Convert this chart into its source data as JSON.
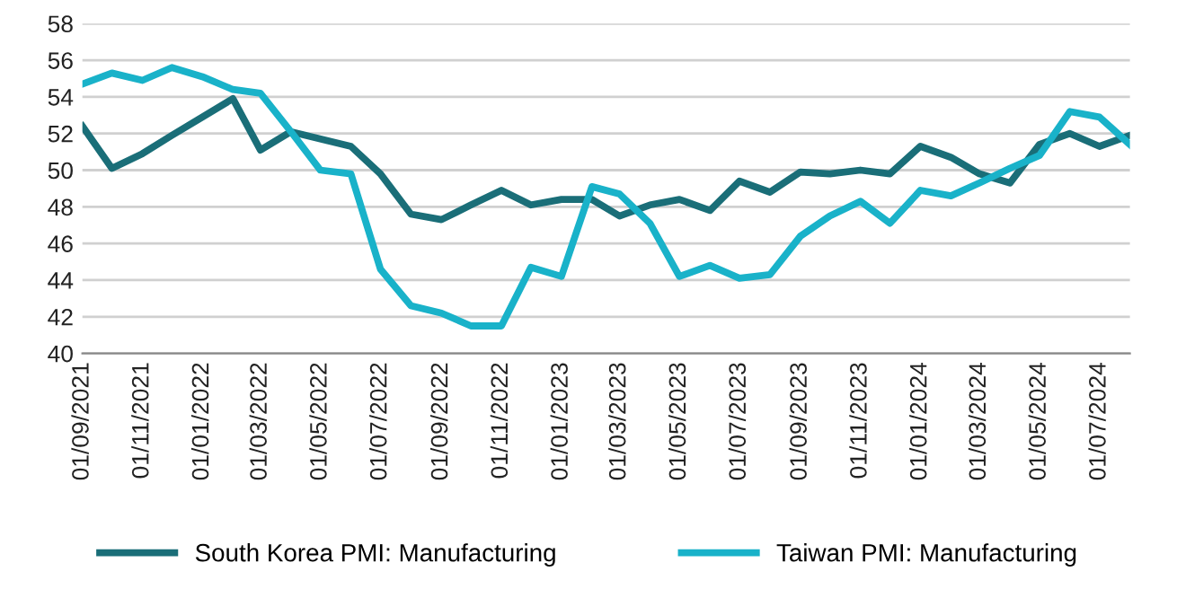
{
  "chart_data": {
    "type": "line",
    "x": [
      "2021-09-01",
      "2021-10-01",
      "2021-11-01",
      "2021-12-01",
      "2022-01-01",
      "2022-02-01",
      "2022-03-01",
      "2022-04-01",
      "2022-05-01",
      "2022-06-01",
      "2022-07-01",
      "2022-08-01",
      "2022-09-01",
      "2022-10-01",
      "2022-11-01",
      "2022-12-01",
      "2023-01-01",
      "2023-02-01",
      "2023-03-01",
      "2023-04-01",
      "2023-05-01",
      "2023-06-01",
      "2023-07-01",
      "2023-08-01",
      "2023-09-01",
      "2023-10-01",
      "2023-11-01",
      "2023-12-01",
      "2024-01-01",
      "2024-02-01",
      "2024-03-01",
      "2024-04-01",
      "2024-05-01",
      "2024-06-01",
      "2024-07-01",
      "2024-08-01"
    ],
    "series": [
      {
        "name": "South Korea PMI: Manufacturing",
        "color": "#1a6e78",
        "values": [
          52.4,
          50.1,
          50.9,
          51.9,
          52.9,
          53.9,
          51.1,
          52.1,
          51.7,
          51.3,
          49.8,
          47.6,
          47.3,
          48.1,
          48.9,
          48.1,
          48.4,
          48.4,
          47.5,
          48.1,
          48.4,
          47.8,
          49.4,
          48.8,
          49.9,
          49.8,
          50.0,
          49.8,
          51.3,
          50.7,
          49.8,
          49.3,
          51.4,
          52.0,
          51.3,
          51.9
        ]
      },
      {
        "name": "Taiwan PMI: Manufacturing",
        "color": "#19b2c9",
        "values": [
          54.7,
          55.3,
          54.9,
          55.6,
          55.1,
          54.4,
          54.2,
          52.1,
          50.0,
          49.8,
          44.6,
          42.6,
          42.2,
          41.5,
          41.5,
          44.7,
          44.2,
          49.1,
          48.7,
          47.1,
          44.2,
          44.8,
          44.1,
          44.3,
          46.4,
          47.5,
          48.3,
          47.1,
          48.9,
          48.6,
          49.3,
          50.1,
          50.8,
          53.2,
          52.9,
          51.4
        ]
      }
    ],
    "xlim": [
      "2021-09-01",
      "2024-08-01"
    ],
    "xticks": [
      {
        "value": "2021-09-01",
        "label": "01/09/2021"
      },
      {
        "value": "2021-11-01",
        "label": "01/11/2021"
      },
      {
        "value": "2022-01-01",
        "label": "01/01/2022"
      },
      {
        "value": "2022-03-01",
        "label": "01/03/2022"
      },
      {
        "value": "2022-05-01",
        "label": "01/05/2022"
      },
      {
        "value": "2022-07-01",
        "label": "01/07/2022"
      },
      {
        "value": "2022-09-01",
        "label": "01/09/2022"
      },
      {
        "value": "2022-11-01",
        "label": "01/11/2022"
      },
      {
        "value": "2023-01-01",
        "label": "01/01/2023"
      },
      {
        "value": "2023-03-01",
        "label": "01/03/2023"
      },
      {
        "value": "2023-05-01",
        "label": "01/05/2023"
      },
      {
        "value": "2023-07-01",
        "label": "01/07/2023"
      },
      {
        "value": "2023-09-01",
        "label": "01/09/2023"
      },
      {
        "value": "2023-11-01",
        "label": "01/11/2023"
      },
      {
        "value": "2024-01-01",
        "label": "01/01/2024"
      },
      {
        "value": "2024-03-01",
        "label": "01/03/2024"
      },
      {
        "value": "2024-05-01",
        "label": "01/05/2024"
      },
      {
        "value": "2024-07-01",
        "label": "01/07/2024"
      }
    ],
    "ylim": [
      40,
      58
    ],
    "yticks": [
      40,
      42,
      44,
      46,
      48,
      50,
      52,
      54,
      56,
      58
    ],
    "grid": "y",
    "legend": "bottom",
    "marker": "none",
    "line_style": "solid"
  }
}
